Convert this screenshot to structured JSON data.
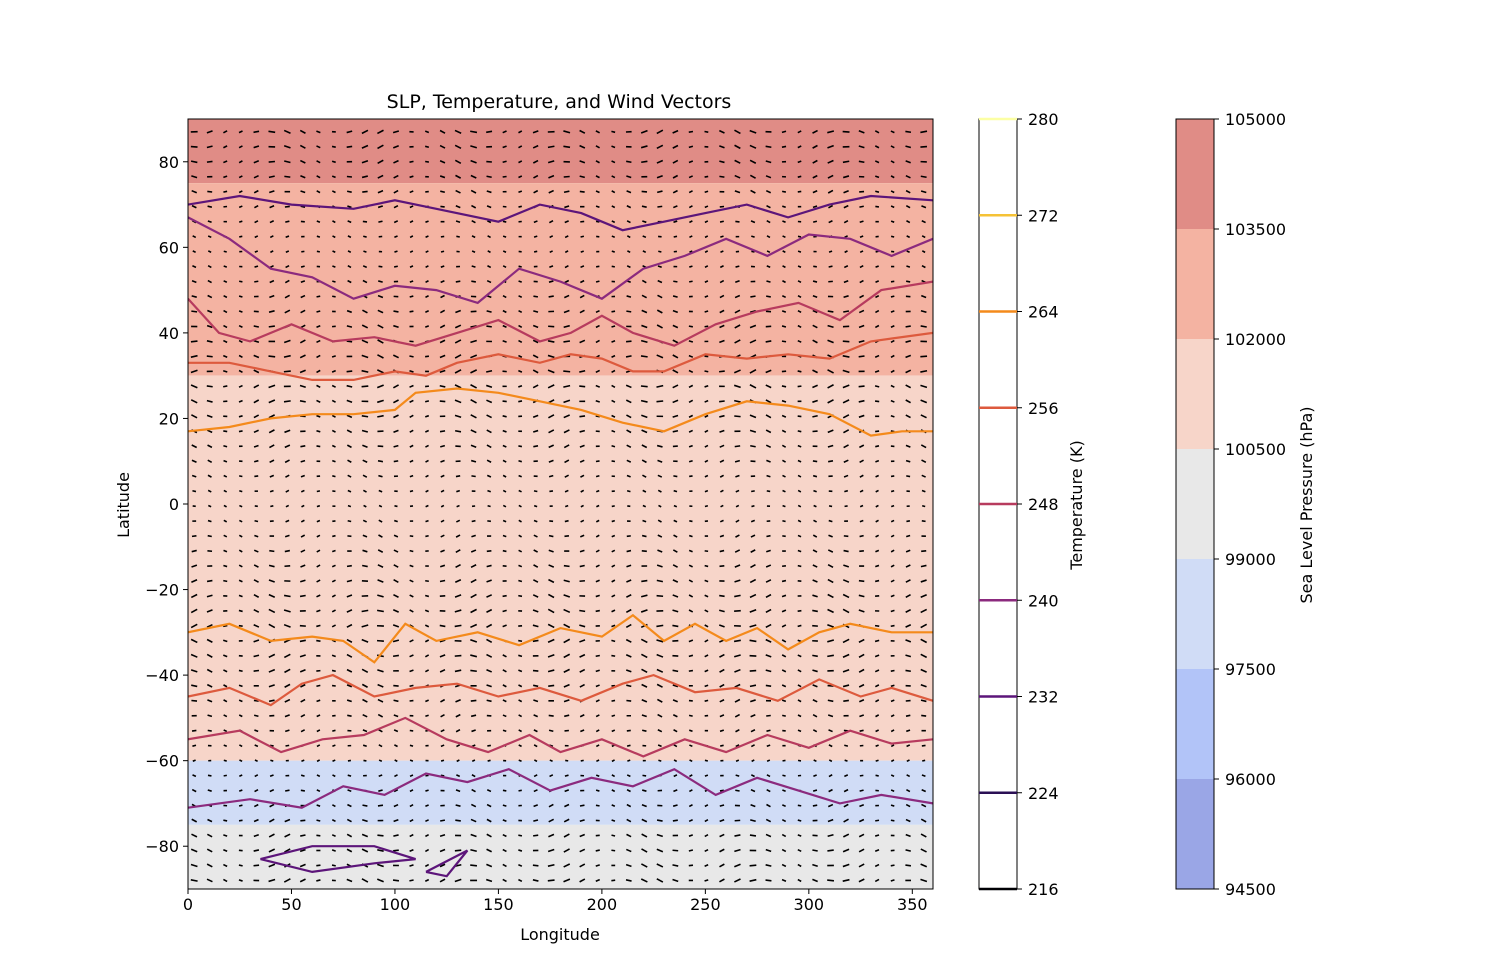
{
  "chart_data": {
    "type": "heatmap",
    "title": "SLP, Temperature, and Wind Vectors",
    "xlabel": "Longitude",
    "ylabel": "Latitude",
    "xlim": [
      0,
      360
    ],
    "ylim": [
      -90,
      90
    ],
    "xticks": [
      0,
      50,
      100,
      150,
      200,
      250,
      300,
      350
    ],
    "yticks": [
      -80,
      -60,
      -40,
      -20,
      0,
      20,
      40,
      60,
      80
    ],
    "grid": false,
    "slp": {
      "label": "Sea Level Pressure (hPa)",
      "levels": [
        94500,
        96000,
        97500,
        99000,
        100500,
        102000,
        103500,
        105000
      ],
      "colors": [
        "#9aa6e6",
        "#b2c4f8",
        "#d0dcf6",
        "#e8e8e8",
        "#f7d5c9",
        "#f4b3a2",
        "#e08c86"
      ],
      "field_note_bands": [
        {
          "lat_range": [
            75,
            90
          ],
          "level_index": 6
        },
        {
          "lat_range": [
            30,
            75
          ],
          "level_index": 5
        },
        {
          "lat_range": [
            -45,
            30
          ],
          "level_index": 4
        },
        {
          "lat_range": [
            -60,
            -45
          ],
          "level_index": 4
        },
        {
          "lat_range": [
            -75,
            -60
          ],
          "level_index": 2
        },
        {
          "lat_range": [
            -90,
            -75
          ],
          "level_index": 3
        }
      ]
    },
    "temperature": {
      "label": "Temperature (K)",
      "levels": [
        216,
        224,
        232,
        240,
        248,
        256,
        264,
        272,
        280
      ],
      "colors": [
        "#000004",
        "#2a0f54",
        "#5c157a",
        "#8b2a7e",
        "#b73b5e",
        "#dd5a3d",
        "#f48a1b",
        "#f5c236",
        "#fcffa4"
      ],
      "contours": [
        {
          "level": 264,
          "points": [
            [
              0,
              17
            ],
            [
              20,
              18
            ],
            [
              40,
              20
            ],
            [
              60,
              21
            ],
            [
              80,
              21
            ],
            [
              100,
              22
            ],
            [
              110,
              26
            ],
            [
              130,
              27
            ],
            [
              150,
              26
            ],
            [
              170,
              24
            ],
            [
              190,
              22
            ],
            [
              210,
              19
            ],
            [
              230,
              17
            ],
            [
              250,
              21
            ],
            [
              270,
              24
            ],
            [
              290,
              23
            ],
            [
              310,
              21
            ],
            [
              330,
              16
            ],
            [
              345,
              17
            ],
            [
              360,
              17
            ]
          ]
        },
        {
          "level": 264,
          "points": [
            [
              0,
              -30
            ],
            [
              20,
              -28
            ],
            [
              40,
              -32
            ],
            [
              60,
              -31
            ],
            [
              75,
              -32
            ],
            [
              90,
              -37
            ],
            [
              105,
              -28
            ],
            [
              120,
              -32
            ],
            [
              140,
              -30
            ],
            [
              160,
              -33
            ],
            [
              180,
              -29
            ],
            [
              200,
              -31
            ],
            [
              215,
              -26
            ],
            [
              230,
              -32
            ],
            [
              245,
              -28
            ],
            [
              260,
              -32
            ],
            [
              275,
              -29
            ],
            [
              290,
              -34
            ],
            [
              305,
              -30
            ],
            [
              320,
              -28
            ],
            [
              340,
              -30
            ],
            [
              360,
              -30
            ]
          ]
        },
        {
          "level": 256,
          "points": [
            [
              0,
              33
            ],
            [
              20,
              33
            ],
            [
              40,
              31
            ],
            [
              60,
              29
            ],
            [
              80,
              29
            ],
            [
              100,
              31
            ],
            [
              115,
              30
            ],
            [
              130,
              33
            ],
            [
              150,
              35
            ],
            [
              170,
              33
            ],
            [
              185,
              35
            ],
            [
              200,
              34
            ],
            [
              215,
              31
            ],
            [
              230,
              31
            ],
            [
              250,
              35
            ],
            [
              270,
              34
            ],
            [
              290,
              35
            ],
            [
              310,
              34
            ],
            [
              330,
              38
            ],
            [
              360,
              40
            ]
          ]
        },
        {
          "level": 256,
          "points": [
            [
              0,
              -45
            ],
            [
              20,
              -43
            ],
            [
              40,
              -47
            ],
            [
              55,
              -42
            ],
            [
              70,
              -40
            ],
            [
              90,
              -45
            ],
            [
              110,
              -43
            ],
            [
              130,
              -42
            ],
            [
              150,
              -45
            ],
            [
              170,
              -43
            ],
            [
              190,
              -46
            ],
            [
              210,
              -42
            ],
            [
              225,
              -40
            ],
            [
              245,
              -44
            ],
            [
              265,
              -43
            ],
            [
              285,
              -46
            ],
            [
              305,
              -41
            ],
            [
              325,
              -45
            ],
            [
              340,
              -43
            ],
            [
              360,
              -46
            ]
          ]
        },
        {
          "level": 248,
          "points": [
            [
              0,
              48
            ],
            [
              15,
              40
            ],
            [
              30,
              38
            ],
            [
              50,
              42
            ],
            [
              70,
              38
            ],
            [
              90,
              39
            ],
            [
              110,
              37
            ],
            [
              130,
              40
            ],
            [
              150,
              43
            ],
            [
              170,
              38
            ],
            [
              185,
              40
            ],
            [
              200,
              44
            ],
            [
              215,
              40
            ],
            [
              235,
              37
            ],
            [
              255,
              42
            ],
            [
              275,
              45
            ],
            [
              295,
              47
            ],
            [
              315,
              43
            ],
            [
              335,
              50
            ],
            [
              360,
              52
            ]
          ]
        },
        {
          "level": 248,
          "points": [
            [
              0,
              -55
            ],
            [
              25,
              -53
            ],
            [
              45,
              -58
            ],
            [
              65,
              -55
            ],
            [
              85,
              -54
            ],
            [
              105,
              -50
            ],
            [
              125,
              -55
            ],
            [
              145,
              -58
            ],
            [
              165,
              -54
            ],
            [
              180,
              -58
            ],
            [
              200,
              -55
            ],
            [
              220,
              -59
            ],
            [
              240,
              -55
            ],
            [
              260,
              -58
            ],
            [
              280,
              -54
            ],
            [
              300,
              -57
            ],
            [
              320,
              -53
            ],
            [
              340,
              -56
            ],
            [
              360,
              -55
            ]
          ]
        },
        {
          "level": 240,
          "points": [
            [
              0,
              67
            ],
            [
              20,
              62
            ],
            [
              40,
              55
            ],
            [
              60,
              53
            ],
            [
              80,
              48
            ],
            [
              100,
              51
            ],
            [
              120,
              50
            ],
            [
              140,
              47
            ],
            [
              160,
              55
            ],
            [
              180,
              52
            ],
            [
              200,
              48
            ],
            [
              220,
              55
            ],
            [
              240,
              58
            ],
            [
              260,
              62
            ],
            [
              280,
              58
            ],
            [
              300,
              63
            ],
            [
              320,
              62
            ],
            [
              340,
              58
            ],
            [
              360,
              62
            ]
          ]
        },
        {
          "level": 240,
          "points": [
            [
              0,
              -71
            ],
            [
              30,
              -69
            ],
            [
              55,
              -71
            ],
            [
              75,
              -66
            ],
            [
              95,
              -68
            ],
            [
              115,
              -63
            ],
            [
              135,
              -65
            ],
            [
              155,
              -62
            ],
            [
              175,
              -67
            ],
            [
              195,
              -64
            ],
            [
              215,
              -66
            ],
            [
              235,
              -62
            ],
            [
              255,
              -68
            ],
            [
              275,
              -64
            ],
            [
              295,
              -67
            ],
            [
              315,
              -70
            ],
            [
              335,
              -68
            ],
            [
              360,
              -70
            ]
          ]
        },
        {
          "level": 232,
          "points": [
            [
              0,
              70
            ],
            [
              25,
              72
            ],
            [
              50,
              70
            ],
            [
              80,
              69
            ],
            [
              100,
              71
            ],
            [
              120,
              69
            ],
            [
              150,
              66
            ],
            [
              170,
              70
            ],
            [
              190,
              68
            ],
            [
              210,
              64
            ],
            [
              230,
              66
            ],
            [
              250,
              68
            ],
            [
              270,
              70
            ],
            [
              290,
              67
            ],
            [
              310,
              70
            ],
            [
              330,
              72
            ],
            [
              360,
              71
            ]
          ]
        },
        {
          "level": 232,
          "points": [
            [
              35,
              -83
            ],
            [
              60,
              -80
            ],
            [
              90,
              -80
            ],
            [
              110,
              -83
            ],
            [
              90,
              -84
            ],
            [
              60,
              -86
            ],
            [
              35,
              -83
            ]
          ]
        },
        {
          "level": 232,
          "points": [
            [
              115,
              -86
            ],
            [
              135,
              -81
            ],
            [
              125,
              -87
            ],
            [
              115,
              -86
            ]
          ]
        }
      ]
    },
    "wind": {
      "dominant_flow": [
        {
          "lat_range": [
            60,
            90
          ],
          "direction": "westerly"
        },
        {
          "lat_range": [
            30,
            60
          ],
          "direction": "westerly"
        },
        {
          "lat_range": [
            -30,
            30
          ],
          "direction": "easterly"
        },
        {
          "lat_range": [
            -60,
            -30
          ],
          "direction": "westerly"
        },
        {
          "lat_range": [
            -90,
            -60
          ],
          "direction": "easterly"
        }
      ]
    }
  }
}
